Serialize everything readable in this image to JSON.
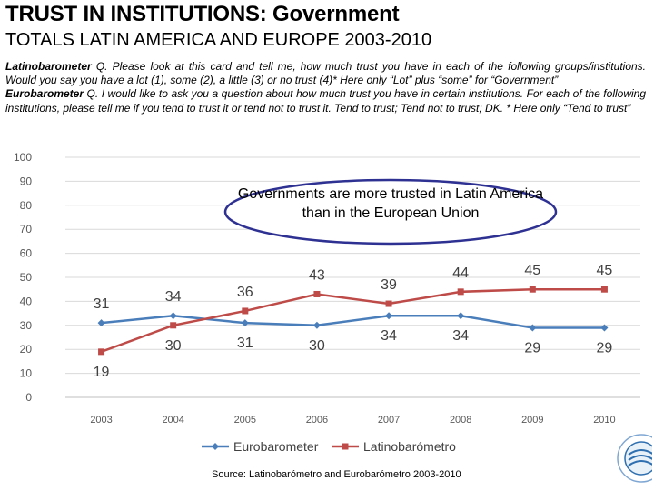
{
  "header": {
    "title": "TRUST IN INSTITUTIONS: Government",
    "subtitle": "TOTALS LATIN AMERICA AND EUROPE 2003-2010"
  },
  "description": {
    "latino_label": "Latinobarometer",
    "latino_text": " Q. Please look at this card and tell me, how much trust you have in each of the following groups/institutions. Would you say you have a lot (1), some (2), a little (3) or no trust (4)* Here only “Lot” plus “some” for “Government”",
    "euro_label": "Eurobarometer",
    "euro_text": " Q. I would like to ask you a question about how much  trust you have in certain institutions. For each of the following institutions, please tell me if you tend to trust it or tend not to trust it. Tend to trust; Tend not to trust; DK. * Here only “Tend to trust”"
  },
  "callout": {
    "text": "Governments are more trusted in Latin America than in the European Union"
  },
  "source": "Source: Latinobarómetro and Eurobarómetro 2003-2010",
  "colors": {
    "euro": "#4a7ebb",
    "latino": "#be4b48",
    "callout_border": "#2e3192",
    "grid": "#d9d9d9"
  },
  "chart_data": {
    "type": "line",
    "categories": [
      "2003",
      "2004",
      "2005",
      "2006",
      "2007",
      "2008",
      "2009",
      "2010"
    ],
    "ylim": [
      0,
      100
    ],
    "yticks": [
      0,
      10,
      20,
      30,
      40,
      50,
      60,
      70,
      80,
      90,
      100
    ],
    "series": [
      {
        "name": "Eurobarometer",
        "values": [
          31,
          34,
          31,
          30,
          34,
          34,
          29,
          29
        ],
        "marker": "diamond"
      },
      {
        "name": "Latinobarómetro",
        "values": [
          19,
          30,
          36,
          43,
          39,
          44,
          45,
          45
        ],
        "marker": "square"
      }
    ],
    "legend": "bottom"
  }
}
